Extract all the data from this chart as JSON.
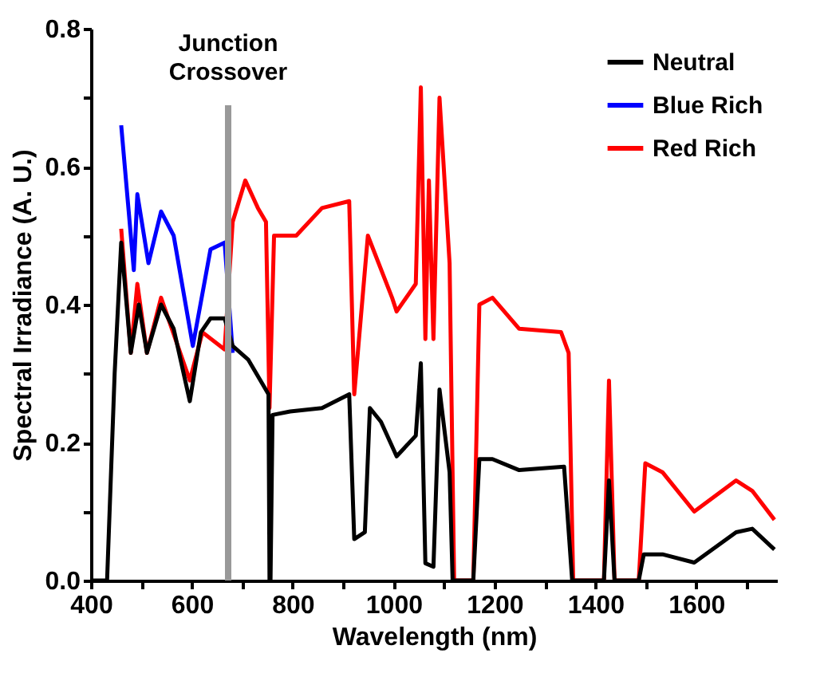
{
  "chart_data": {
    "type": "line",
    "xlabel": "Wavelength (nm)",
    "ylabel": "Spectral Irradiance (A. U.)",
    "xlim": [
      400,
      1760
    ],
    "ylim": [
      0,
      0.8
    ],
    "xticks": [
      400,
      {
        "value": 500,
        "label": null
      },
      600,
      {
        "value": 700,
        "label": null
      },
      800,
      {
        "value": 900,
        "label": null
      },
      1000,
      {
        "value": 1100,
        "label": null
      },
      1200,
      {
        "value": 1300,
        "label": null
      },
      1400,
      {
        "value": 1500,
        "label": null
      },
      1600,
      {
        "value": 1700,
        "label": null
      }
    ],
    "yticks": [
      {
        "value": 0,
        "label": "0.0"
      },
      {
        "value": 0.1,
        "label": null
      },
      {
        "value": 0.2,
        "label": "0.2"
      },
      {
        "value": 0.3,
        "label": null
      },
      {
        "value": 0.4,
        "label": "0.4"
      },
      {
        "value": 0.5,
        "label": null
      },
      {
        "value": 0.6,
        "label": "0.6"
      },
      {
        "value": 0.7,
        "label": null
      },
      {
        "value": 0.8,
        "label": "0.8"
      }
    ],
    "grid": false,
    "legend": "top right",
    "marker": "none",
    "line_style": "solid",
    "ref_lines": [
      {
        "axis": "x",
        "value": 672,
        "label": "Junction Crossover",
        "color": "#999999",
        "line_style": "solid"
      }
    ],
    "series": [
      {
        "name": "Neutral",
        "color": "#000000",
        "x": [
          400,
          432,
          447,
          460,
          479,
          495,
          511,
          539,
          564,
          596,
          618,
          637,
          665,
          681,
          712,
          744,
          752,
          754,
          756,
          760,
          795,
          858,
          912,
          922,
          943,
          953,
          975,
          1006,
          1044,
          1054,
          1063,
          1079,
          1091,
          1111,
          1117,
          1158,
          1170,
          1196,
          1249,
          1338,
          1354,
          1417,
          1427,
          1438,
          1486,
          1496,
          1533,
          1596,
          1679,
          1711,
          1755
        ],
        "values": [
          0,
          0,
          0.3,
          0.49,
          0.33,
          0.4,
          0.33,
          0.4,
          0.365,
          0.26,
          0.36,
          0.38,
          0.38,
          0.34,
          0.32,
          0.28,
          0.27,
          0,
          0,
          0.24,
          0.245,
          0.25,
          0.27,
          0.06,
          0.07,
          0.25,
          0.23,
          0.18,
          0.21,
          0.315,
          0.025,
          0.02,
          0.277,
          0.157,
          0,
          0,
          0.176,
          0.176,
          0.16,
          0.165,
          0,
          0,
          0.145,
          0,
          0,
          0.038,
          0.038,
          0.026,
          0.07,
          0.075,
          0.045
        ]
      },
      {
        "name": "Blue Rich",
        "color": "#0000ff",
        "x": [
          460,
          485,
          492,
          514,
          539,
          564,
          602,
          637,
          665,
          681
        ],
        "values": [
          0.66,
          0.45,
          0.56,
          0.46,
          0.535,
          0.5,
          0.34,
          0.48,
          0.49,
          0.33
        ]
      },
      {
        "name": "Red Rich",
        "color": "#ff0000",
        "x": [
          460,
          479,
          492,
          511,
          539,
          596,
          621,
          665,
          681,
          706,
          731,
          747,
          754,
          763,
          807,
          858,
          912,
          922,
          949,
          997,
          1006,
          1044,
          1054,
          1063,
          1070,
          1079,
          1091,
          1111,
          1120,
          1158,
          1170,
          1196,
          1249,
          1332,
          1347,
          1356,
          1417,
          1427,
          1438,
          1486,
          1499,
          1533,
          1596,
          1679,
          1711,
          1755
        ],
        "values": [
          0.51,
          0.33,
          0.43,
          0.33,
          0.41,
          0.29,
          0.36,
          0.335,
          0.52,
          0.58,
          0.54,
          0.52,
          0.25,
          0.5,
          0.5,
          0.54,
          0.55,
          0.27,
          0.5,
          0.41,
          0.39,
          0.43,
          0.715,
          0.35,
          0.58,
          0.35,
          0.7,
          0.46,
          0,
          0,
          0.4,
          0.41,
          0.365,
          0.36,
          0.33,
          0,
          0,
          0.29,
          0,
          0,
          0.17,
          0.157,
          0.1,
          0.145,
          0.13,
          0.088
        ]
      }
    ]
  }
}
